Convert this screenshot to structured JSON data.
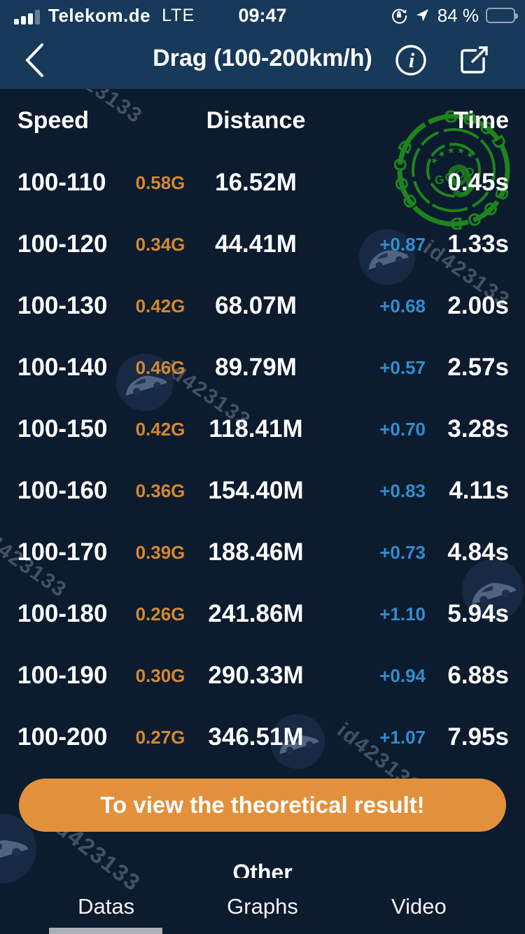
{
  "status_bar": {
    "carrier": "Telekom.de",
    "network": "LTE",
    "time": "09:47",
    "battery_percent": "84 %"
  },
  "nav": {
    "title": "Drag (100-200km/h)"
  },
  "table": {
    "headers": {
      "speed": "Speed",
      "distance": "Distance",
      "time": "Time"
    },
    "rows": [
      {
        "speed": "100-110",
        "g": "0.58G",
        "distance": "16.52M",
        "delta": "",
        "time": "0.45s"
      },
      {
        "speed": "100-120",
        "g": "0.34G",
        "distance": "44.41M",
        "delta": "+0.87",
        "time": "1.33s"
      },
      {
        "speed": "100-130",
        "g": "0.42G",
        "distance": "68.07M",
        "delta": "+0.68",
        "time": "2.00s"
      },
      {
        "speed": "100-140",
        "g": "0.46G",
        "distance": "89.79M",
        "delta": "+0.57",
        "time": "2.57s"
      },
      {
        "speed": "100-150",
        "g": "0.42G",
        "distance": "118.41M",
        "delta": "+0.70",
        "time": "3.28s"
      },
      {
        "speed": "100-160",
        "g": "0.36G",
        "distance": "154.40M",
        "delta": "+0.83",
        "time": "4.11s"
      },
      {
        "speed": "100-170",
        "g": "0.39G",
        "distance": "188.46M",
        "delta": "+0.73",
        "time": "4.84s"
      },
      {
        "speed": "100-180",
        "g": "0.26G",
        "distance": "241.86M",
        "delta": "+1.10",
        "time": "5.94s"
      },
      {
        "speed": "100-190",
        "g": "0.30G",
        "distance": "290.33M",
        "delta": "+0.94",
        "time": "6.88s"
      },
      {
        "speed": "100-200",
        "g": "0.27G",
        "distance": "346.51M",
        "delta": "+1.07",
        "time": "7.95s"
      }
    ]
  },
  "cta_button": {
    "label": "To view the theoretical result!"
  },
  "section": {
    "title": "Other"
  },
  "tab_bar": {
    "tabs": [
      {
        "label": "Datas",
        "active": true
      },
      {
        "label": "Graphs",
        "active": false
      },
      {
        "label": "Video",
        "active": false
      }
    ]
  },
  "watermarks": {
    "id_label": "id423133",
    "stamp_word": "GOOD",
    "stamp_stars": "★ ★ ★ ★ ★",
    "stamp_number": "9"
  },
  "colors": {
    "top_bar": "#17395A",
    "background": "#0C1B2E",
    "accent_orange": "#D5882E",
    "button_orange": "#E2903B",
    "delta_blue": "#2F8ECF",
    "stamp_green": "#1E8A1E"
  }
}
